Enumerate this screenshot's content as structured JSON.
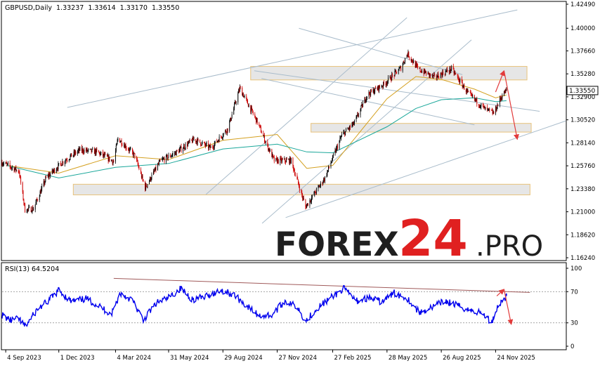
{
  "header": {
    "symbol_line": "GBPUSD,Daily  1.33237  1.33614  1.33170  1.33550"
  },
  "rsi_header": "RSI(13) 64.5204",
  "watermark": {
    "brand": "FOREX",
    "number": "24",
    "suffix": ".PRO"
  },
  "colors": {
    "bull_candle": "#000000",
    "bear_candle": "#cc0000",
    "ma_fast": "#d4a020",
    "ma_slow": "#1aa79a",
    "rsi_line": "#0000ee",
    "zone_fill": "#e6e6e6",
    "zone_border": "#e8c27a",
    "trend_line": "#a9bccb",
    "rsi_trend_line": "#a05a5a",
    "forecast_arrow": "#e23b3b",
    "watermark_dark": "#1f1f1f",
    "watermark_red": "#e02020",
    "current_price_box": "#ffffff"
  },
  "chart_data": [
    {
      "type": "candlestick",
      "symbol": "GBPUSD",
      "timeframe": "Daily",
      "ohlc_last": {
        "open": 1.33237,
        "high": 1.33614,
        "low": 1.3317,
        "close": 1.3355
      },
      "current_price_label": "1.33550",
      "y_ticks": [
        "1.42490",
        "1.40000",
        "1.37660",
        "1.35280",
        "1.32900",
        "1.30520",
        "1.28140",
        "1.25760",
        "1.23380",
        "1.21000",
        "1.18620",
        "1.16240"
      ],
      "ylim": [
        1.1624,
        1.4249
      ],
      "x_ticks": [
        "4 Sep 2023",
        "1 Dec 2023",
        "4 Mar 2024",
        "31 May 2024",
        "29 Aug 2024",
        "27 Nov 2024",
        "27 Feb 2025",
        "28 May 2025",
        "26 Aug 2025",
        "24 Nov 2025"
      ],
      "x_range": [
        "2023-08-29",
        "2026-03-20"
      ],
      "close_series": {
        "x": [
          "2023-08-29",
          "2023-09-26",
          "2023-10-06",
          "2023-10-20",
          "2023-11-10",
          "2023-12-08",
          "2024-01-05",
          "2024-02-02",
          "2024-03-01",
          "2024-03-08",
          "2024-04-05",
          "2024-04-22",
          "2024-05-17",
          "2024-06-14",
          "2024-07-12",
          "2024-08-09",
          "2024-09-06",
          "2024-09-26",
          "2024-10-25",
          "2024-11-08",
          "2024-11-22",
          "2024-12-20",
          "2025-01-13",
          "2025-02-14",
          "2025-03-14",
          "2025-04-04",
          "2025-04-25",
          "2025-05-23",
          "2025-06-20",
          "2025-07-01",
          "2025-07-18",
          "2025-08-15",
          "2025-09-12",
          "2025-10-10",
          "2025-11-07",
          "2025-11-21",
          "2025-12-05",
          "2025-12-12"
        ],
        "y": [
          1.261,
          1.252,
          1.212,
          1.213,
          1.245,
          1.262,
          1.274,
          1.272,
          1.262,
          1.286,
          1.268,
          1.235,
          1.262,
          1.272,
          1.285,
          1.276,
          1.296,
          1.338,
          1.303,
          1.282,
          1.263,
          1.263,
          1.215,
          1.245,
          1.289,
          1.302,
          1.331,
          1.342,
          1.359,
          1.374,
          1.358,
          1.349,
          1.358,
          1.332,
          1.316,
          1.312,
          1.331,
          1.3355
        ]
      },
      "moving_averages": [
        {
          "color_key": "ma_fast",
          "x": [
            "2023-09-05",
            "2023-12-01",
            "2024-03-04",
            "2024-05-31",
            "2024-08-29",
            "2024-11-27",
            "2025-01-15",
            "2025-02-27",
            "2025-05-28",
            "2025-07-15",
            "2025-08-26",
            "2025-10-20",
            "2025-11-24",
            "2025-12-12"
          ],
          "y": [
            1.258,
            1.25,
            1.268,
            1.264,
            1.284,
            1.29,
            1.255,
            1.258,
            1.327,
            1.35,
            1.347,
            1.337,
            1.328,
            1.331
          ]
        },
        {
          "color_key": "ma_slow",
          "x": [
            "2023-09-05",
            "2023-12-01",
            "2024-03-04",
            "2024-05-31",
            "2024-08-29",
            "2024-11-27",
            "2025-01-15",
            "2025-02-27",
            "2025-05-28",
            "2025-07-15",
            "2025-08-26",
            "2025-10-20",
            "2025-11-24",
            "2025-12-12"
          ],
          "y": [
            1.258,
            1.245,
            1.256,
            1.26,
            1.275,
            1.28,
            1.272,
            1.271,
            1.298,
            1.317,
            1.326,
            1.328,
            1.324,
            1.325
          ]
        }
      ],
      "zones": [
        {
          "x_start": "2024-10-14",
          "x_end": "2026-01-15",
          "y_low": 1.3465,
          "y_high": 1.3605
        },
        {
          "x_start": "2025-01-22",
          "x_end": "2026-01-22",
          "y_low": 1.2925,
          "y_high": 1.3015
        },
        {
          "x_start": "2023-12-25",
          "x_end": "2026-01-20",
          "y_low": 1.2275,
          "y_high": 1.2385
        }
      ],
      "trendlines": [
        {
          "x": [
            "2023-12-15",
            "2025-12-30"
          ],
          "y": [
            1.318,
            1.419
          ]
        },
        {
          "x": [
            "2024-10-20",
            "2026-02-05"
          ],
          "y": [
            1.356,
            1.314
          ]
        },
        {
          "x": [
            "2024-08-01",
            "2025-06-30"
          ],
          "y": [
            1.228,
            1.411
          ]
        },
        {
          "x": [
            "2024-11-02",
            "2025-10-15"
          ],
          "y": [
            1.198,
            1.388
          ]
        },
        {
          "x": [
            "2025-01-02",
            "2025-09-30"
          ],
          "y": [
            1.4,
            1.352
          ]
        },
        {
          "x": [
            "2024-11-01",
            "2025-10-20"
          ],
          "y": [
            1.348,
            1.3
          ]
        },
        {
          "x": [
            "2024-12-11",
            "2026-03-20"
          ],
          "y": [
            1.204,
            1.304
          ]
        }
      ],
      "forecast_path": {
        "x": [
          "2025-11-24",
          "2025-12-08",
          "2025-12-30"
        ],
        "y": [
          1.334,
          1.356,
          1.285
        ]
      }
    },
    {
      "type": "line",
      "indicator": "RSI(13)",
      "last_value": 64.5204,
      "y_ticks": [
        "100",
        "70",
        "30",
        "0"
      ],
      "ylim": [
        0,
        100
      ],
      "series": {
        "x": [
          "2023-08-29",
          "2023-09-12",
          "2023-09-26",
          "2023-10-06",
          "2023-10-27",
          "2023-11-14",
          "2023-12-01",
          "2023-12-22",
          "2024-01-15",
          "2024-02-05",
          "2024-02-26",
          "2024-03-12",
          "2024-04-01",
          "2024-04-19",
          "2024-05-10",
          "2024-05-31",
          "2024-06-20",
          "2024-07-10",
          "2024-07-29",
          "2024-08-26",
          "2024-09-16",
          "2024-10-07",
          "2024-10-28",
          "2024-11-18",
          "2024-12-10",
          "2024-12-31",
          "2025-01-13",
          "2025-02-03",
          "2025-02-24",
          "2025-03-17",
          "2025-04-07",
          "2025-04-28",
          "2025-05-19",
          "2025-06-09",
          "2025-06-30",
          "2025-07-21",
          "2025-08-11",
          "2025-09-01",
          "2025-09-22",
          "2025-10-13",
          "2025-11-03",
          "2025-11-17",
          "2025-11-28",
          "2025-12-12"
        ],
        "y": [
          40,
          33,
          35,
          25,
          48,
          58,
          72,
          57,
          61,
          52,
          41,
          68,
          59,
          33,
          55,
          62,
          74,
          60,
          63,
          72,
          66,
          52,
          39,
          40,
          58,
          50,
          32,
          50,
          62,
          74,
          58,
          62,
          57,
          68,
          62,
          43,
          50,
          58,
          52,
          46,
          42,
          30,
          52,
          64.5
        ]
      },
      "trendline": {
        "x": [
          "2024-03-01",
          "2026-01-20"
        ],
        "y": [
          87.0,
          69.0
        ]
      },
      "forecast_path": {
        "x": [
          "2025-11-26",
          "2025-12-08",
          "2025-12-20"
        ],
        "y": [
          64.5,
          73.0,
          28.0
        ]
      }
    }
  ]
}
